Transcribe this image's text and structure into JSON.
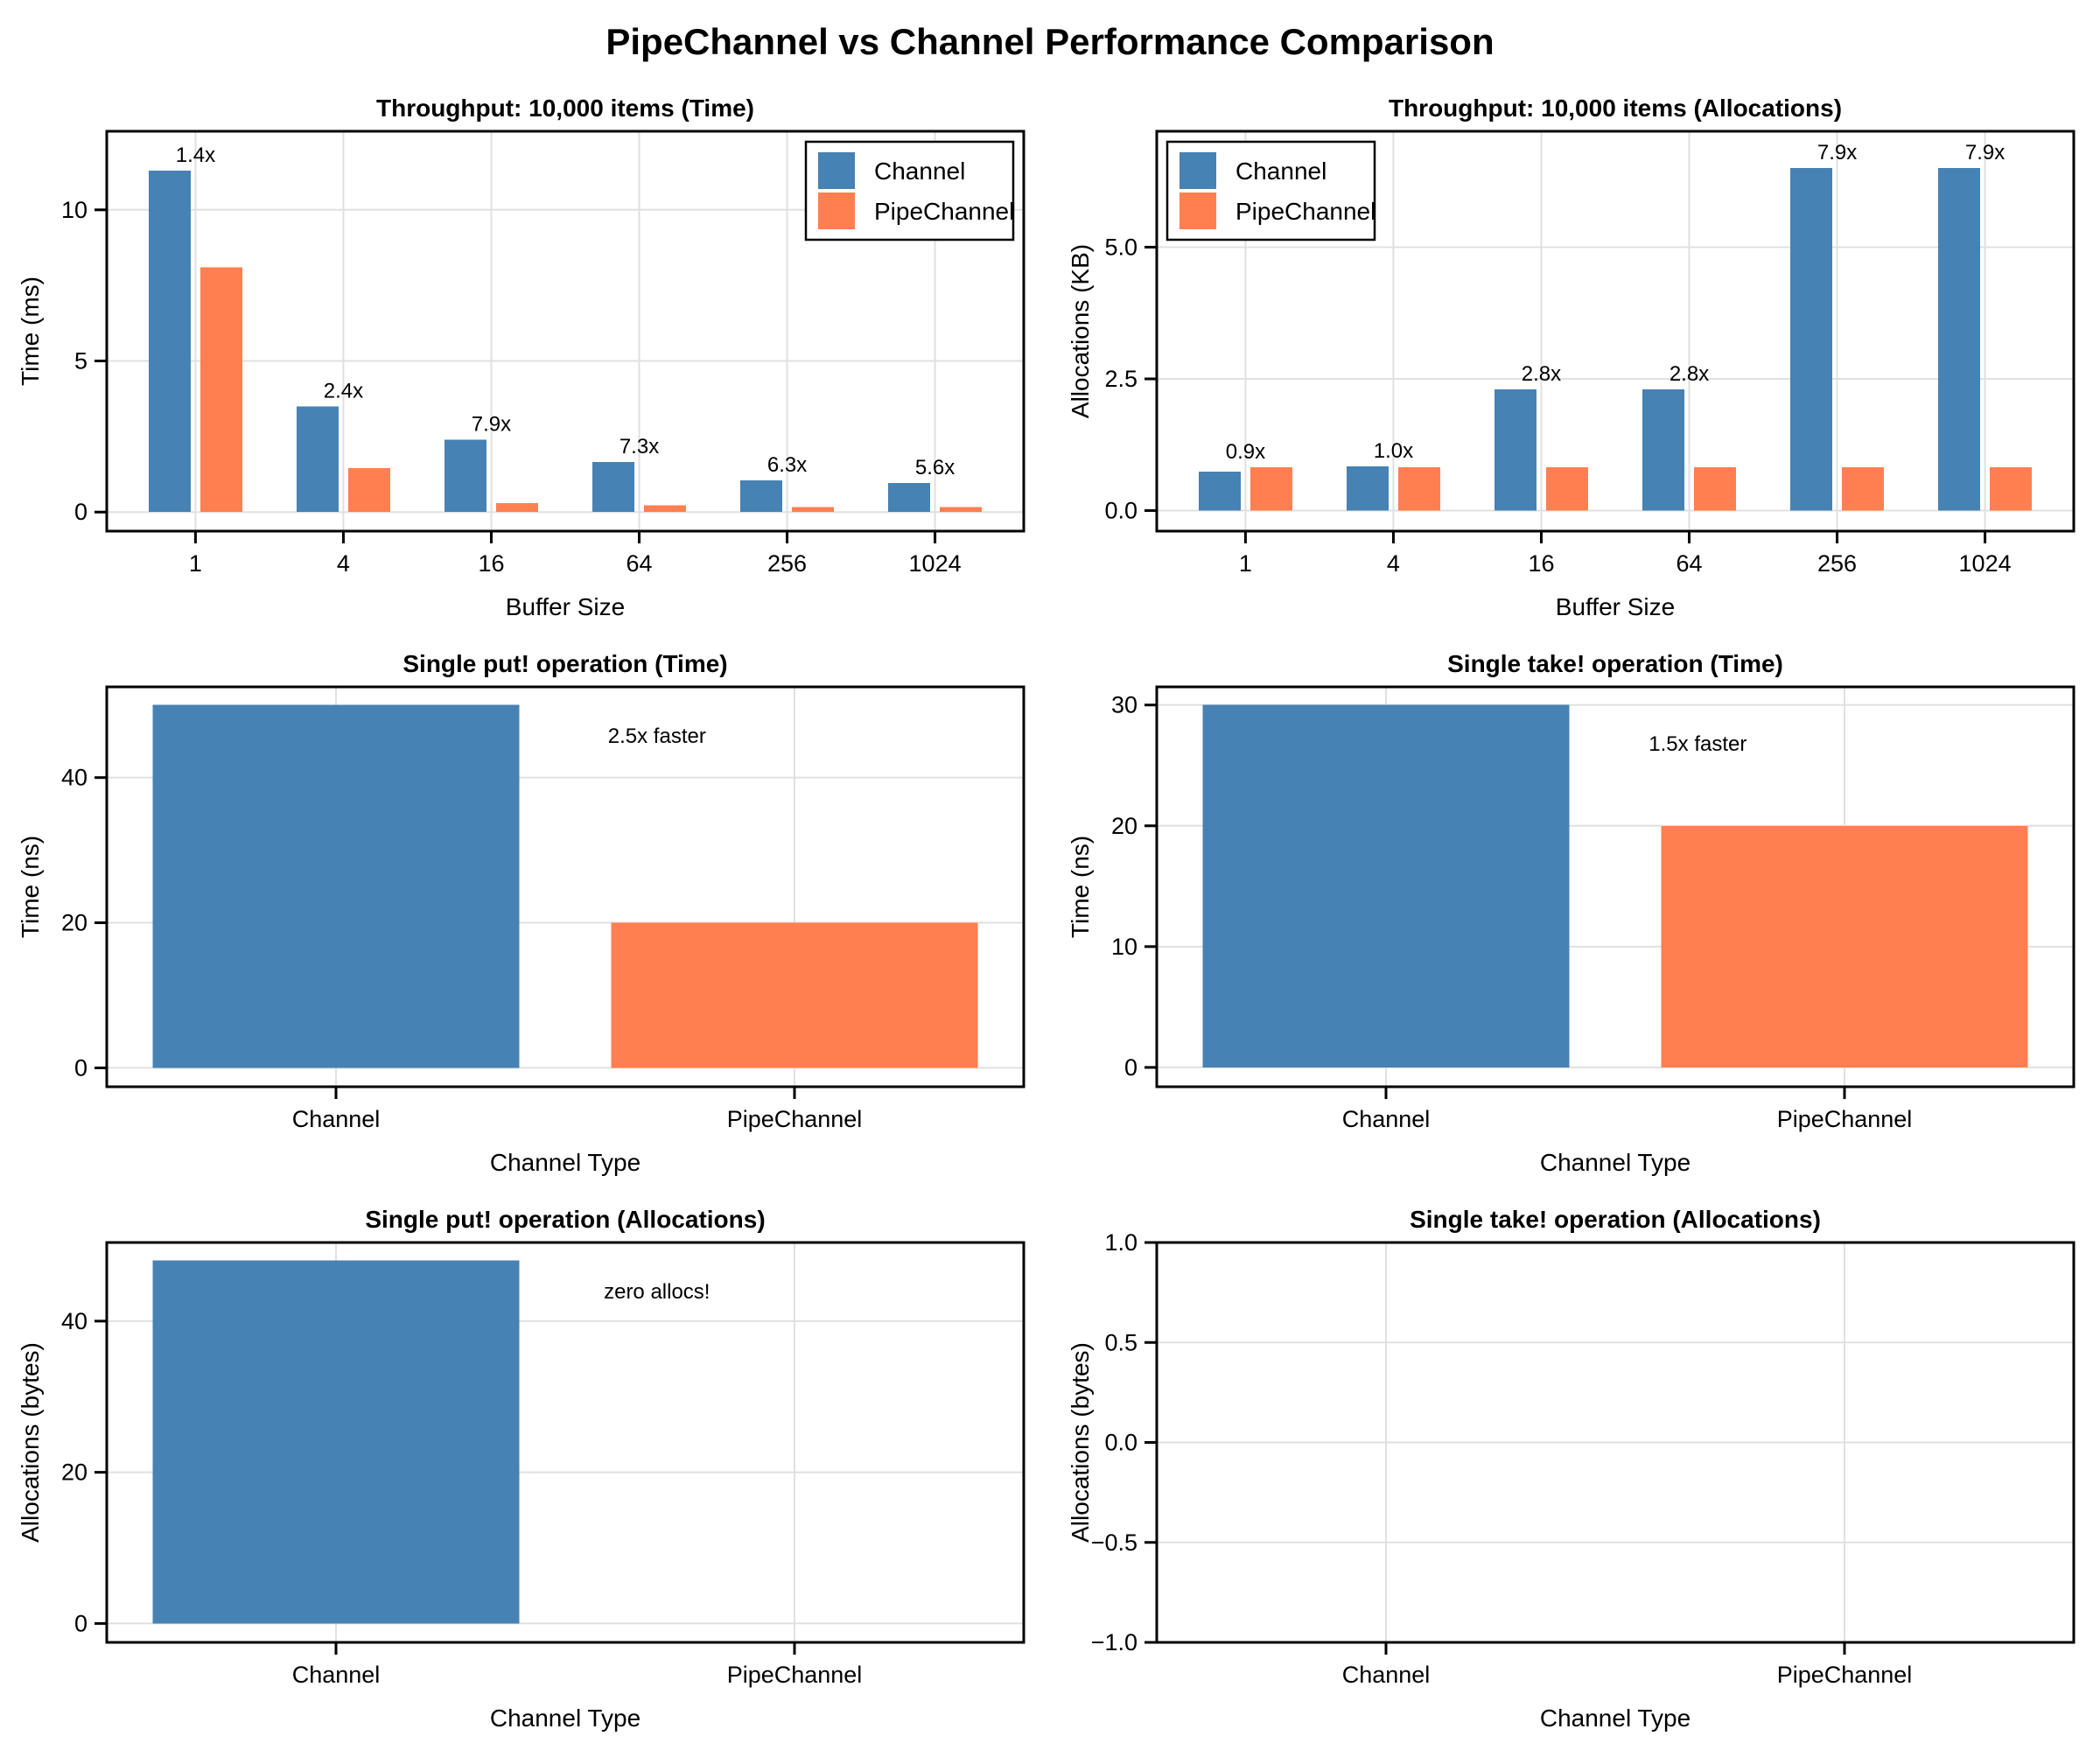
{
  "page_title": "PipeChannel vs Channel Performance Comparison",
  "colors": {
    "channel_bar": "#4682B4",
    "pipechannel_bar": "#FF7F50",
    "grid": "#E0E0E0",
    "axis": "#000000",
    "background": "#FFFFFF",
    "legend_border": "#000000",
    "legend_background": "#FFFFFF"
  },
  "chart_data": [
    {
      "type": "bar",
      "mode": "grouped",
      "title": "Throughput: 10,000 items (Time)",
      "xlabel": "Buffer Size",
      "ylabel": "Time (ms)",
      "categories": [
        "1",
        "4",
        "16",
        "64",
        "256",
        "1024"
      ],
      "series": [
        {
          "name": "Channel",
          "color": "#4682B4",
          "values": [
            11.3,
            3.5,
            2.4,
            1.65,
            1.05,
            0.96
          ]
        },
        {
          "name": "PipeChannel",
          "color": "#FF7F50",
          "values": [
            8.1,
            1.45,
            0.3,
            0.23,
            0.17,
            0.17
          ]
        }
      ],
      "speedup_labels": [
        "1.4x",
        "2.4x",
        "7.9x",
        "7.3x",
        "6.3x",
        "5.6x"
      ],
      "ylim": [
        -0.63,
        12.6
      ],
      "ytick_values": [
        0,
        5,
        10
      ],
      "ytick_labels": [
        "0",
        "5",
        "10"
      ],
      "grid": true,
      "legend": {
        "position": "top-right",
        "entries": [
          "Channel",
          "PipeChannel"
        ]
      },
      "note": null
    },
    {
      "type": "bar",
      "mode": "grouped",
      "title": "Throughput: 10,000 items (Allocations)",
      "xlabel": "Buffer Size",
      "ylabel": "Allocations (KB)",
      "categories": [
        "1",
        "4",
        "16",
        "64",
        "256",
        "1024"
      ],
      "series": [
        {
          "name": "Channel",
          "color": "#4682B4",
          "values": [
            0.74,
            0.84,
            2.3,
            2.3,
            6.5,
            6.5
          ]
        },
        {
          "name": "PipeChannel",
          "color": "#FF7F50",
          "values": [
            0.82,
            0.82,
            0.82,
            0.82,
            0.82,
            0.82
          ]
        }
      ],
      "speedup_labels": [
        "0.9x",
        "1.0x",
        "2.8x",
        "2.8x",
        "7.9x",
        "7.9x"
      ],
      "ylim": [
        -0.39,
        7.2
      ],
      "ytick_values": [
        0,
        2.5,
        5
      ],
      "ytick_labels": [
        "0.0",
        "2.5",
        "5.0"
      ],
      "grid": true,
      "legend": {
        "position": "top-left",
        "entries": [
          "Channel",
          "PipeChannel"
        ]
      },
      "note": null
    },
    {
      "type": "bar",
      "mode": "single",
      "title": "Single put! operation (Time)",
      "xlabel": "Channel Type",
      "ylabel": "Time (ns)",
      "categories": [
        "Channel",
        "PipeChannel"
      ],
      "values": [
        50,
        20
      ],
      "bar_colors": [
        "#4682B4",
        "#FF7F50"
      ],
      "ylim": [
        -2.6,
        52.5
      ],
      "ytick_values": [
        0,
        20,
        40
      ],
      "ytick_labels": [
        "0",
        "20",
        "40"
      ],
      "grid": true,
      "legend": null,
      "note": {
        "text": "2.5x faster",
        "fx": 0.6,
        "fy": 0.14
      }
    },
    {
      "type": "bar",
      "mode": "single",
      "title": "Single take! operation (Time)",
      "xlabel": "Channel Type",
      "ylabel": "Time (ns)",
      "categories": [
        "Channel",
        "PipeChannel"
      ],
      "values": [
        30,
        20
      ],
      "bar_colors": [
        "#4682B4",
        "#FF7F50"
      ],
      "ylim": [
        -1.6,
        31.5
      ],
      "ytick_values": [
        0,
        10,
        20,
        30
      ],
      "ytick_labels": [
        "0",
        "10",
        "20",
        "30"
      ],
      "grid": true,
      "legend": null,
      "note": {
        "text": "1.5x faster",
        "fx": 0.59,
        "fy": 0.16
      }
    },
    {
      "type": "bar",
      "mode": "single",
      "title": "Single put! operation (Allocations)",
      "xlabel": "Channel Type",
      "ylabel": "Allocations (bytes)",
      "categories": [
        "Channel",
        "PipeChannel"
      ],
      "values": [
        48,
        0
      ],
      "bar_colors": [
        "#4682B4",
        "#FF7F50"
      ],
      "ylim": [
        -2.5,
        50.4
      ],
      "ytick_values": [
        0,
        20,
        40
      ],
      "ytick_labels": [
        "0",
        "20",
        "40"
      ],
      "grid": true,
      "legend": null,
      "note": {
        "text": "zero allocs!",
        "fx": 0.6,
        "fy": 0.14
      }
    },
    {
      "type": "bar",
      "mode": "single",
      "title": "Single take! operation (Allocations)",
      "xlabel": "Channel Type",
      "ylabel": "Allocations (bytes)",
      "categories": [
        "Channel",
        "PipeChannel"
      ],
      "values": [
        0,
        0
      ],
      "bar_colors": [
        "#4682B4",
        "#FF7F50"
      ],
      "ylim": [
        -1,
        1
      ],
      "ytick_values": [
        -1,
        -0.5,
        0,
        0.5,
        1
      ],
      "ytick_labels": [
        "−1.0",
        "−0.5",
        "0.0",
        "0.5",
        "1.0"
      ],
      "grid": true,
      "legend": null,
      "note": null
    }
  ]
}
